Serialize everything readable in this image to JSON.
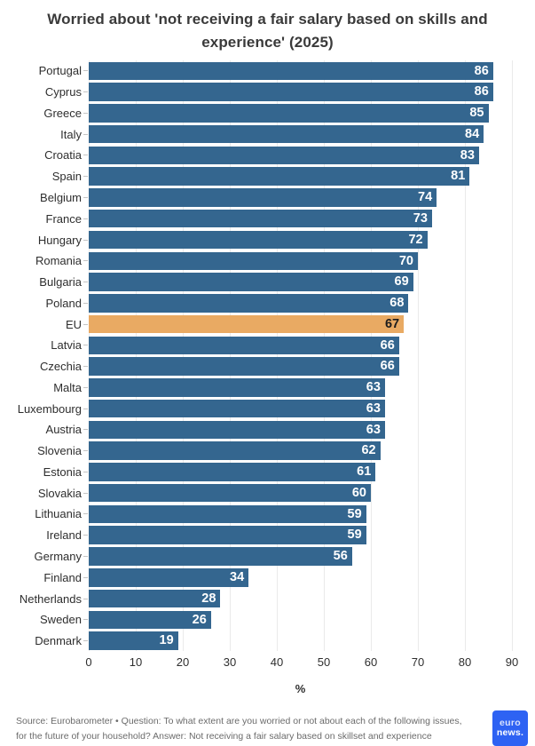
{
  "title": "Worried about 'not receiving a fair salary based on skills and experience' (2025)",
  "chart_data": {
    "type": "bar",
    "orientation": "horizontal",
    "categories": [
      "Portugal",
      "Cyprus",
      "Greece",
      "Italy",
      "Croatia",
      "Spain",
      "Belgium",
      "France",
      "Hungary",
      "Romania",
      "Bulgaria",
      "Poland",
      "EU",
      "Latvia",
      "Czechia",
      "Malta",
      "Luxembourg",
      "Austria",
      "Slovenia",
      "Estonia",
      "Slovakia",
      "Lithuania",
      "Ireland",
      "Germany",
      "Finland",
      "Netherlands",
      "Sweden",
      "Denmark"
    ],
    "values": [
      86,
      86,
      85,
      84,
      83,
      81,
      74,
      73,
      72,
      70,
      69,
      68,
      67,
      66,
      66,
      63,
      63,
      63,
      62,
      61,
      60,
      59,
      59,
      56,
      34,
      28,
      26,
      19
    ],
    "highlight_category": "EU",
    "xlabel": "%",
    "xlim": [
      0,
      90
    ],
    "xticks": [
      0,
      10,
      20,
      30,
      40,
      50,
      60,
      70,
      80,
      90
    ],
    "grid": true,
    "legend": "none",
    "value_labels": "inside-end",
    "colors": {
      "bar": "#34668f",
      "highlight_bar": "#e9aa63",
      "value_label": "#ffffff",
      "highlight_value_label": "#1c1c1c"
    }
  },
  "footer": {
    "source_lines": [
      "Source: Eurobarometer • Question: To what extent are you worried or not about each of the following issues,",
      "for the future of your household? Answer: Not receiving a fair salary based on skillset and experience"
    ],
    "logo": {
      "line1": "euro",
      "line2": "news.",
      "background": "#2e62f3"
    }
  }
}
